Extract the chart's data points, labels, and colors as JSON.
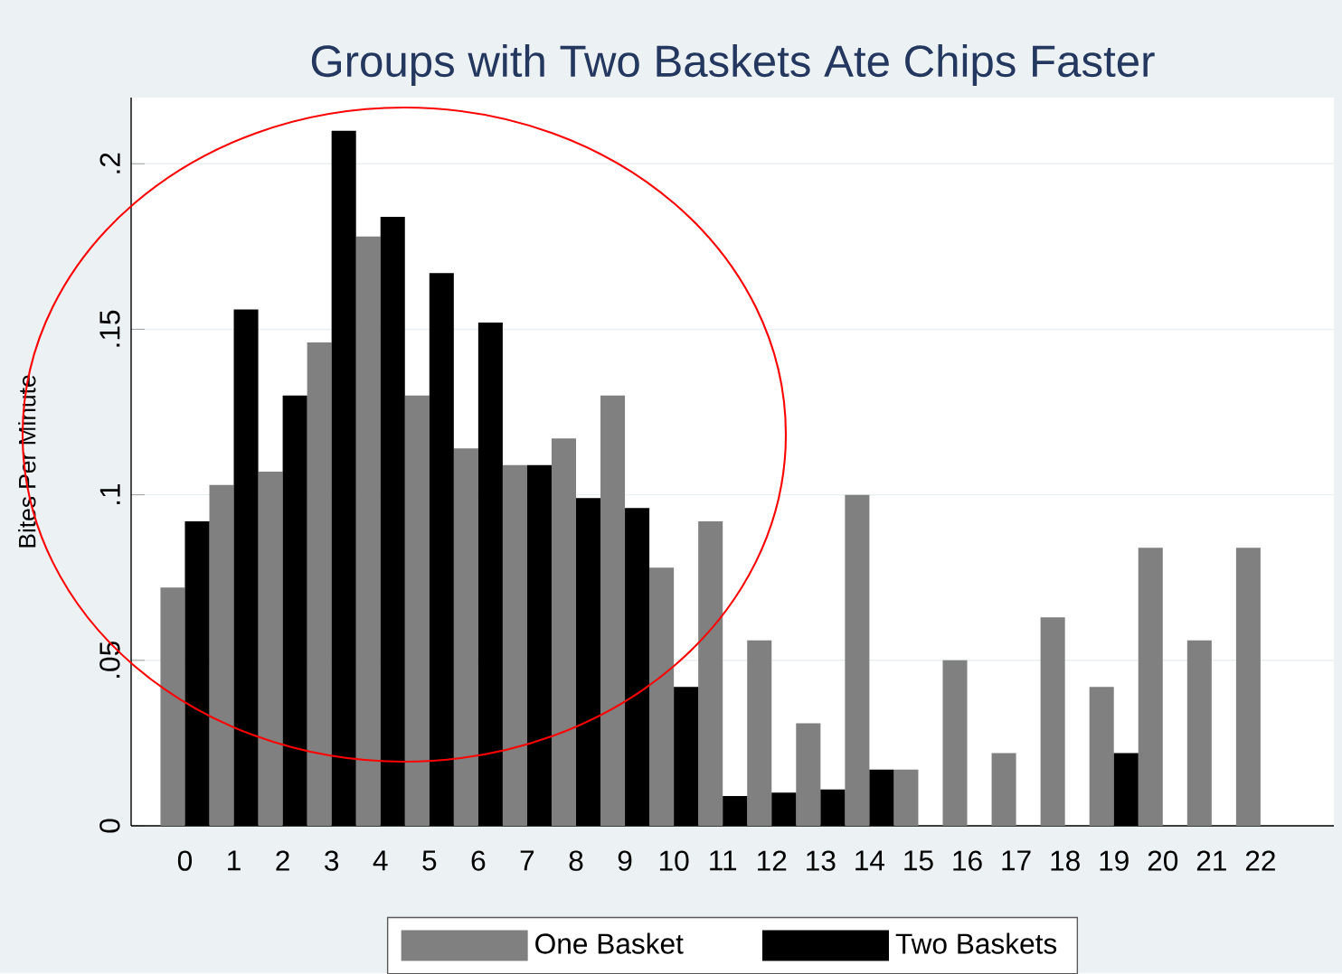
{
  "chart_data": {
    "type": "bar",
    "title": "Groups with Two Baskets Ate Chips Faster",
    "ylabel": "Bites Per Minute",
    "categories": [
      "0",
      "1",
      "2",
      "3",
      "4",
      "5",
      "6",
      "7",
      "8",
      "9",
      "10",
      "11",
      "12",
      "13",
      "14",
      "15",
      "16",
      "17",
      "18",
      "19",
      "20",
      "21",
      "22"
    ],
    "series": [
      {
        "name": "One Basket",
        "color": "#808080",
        "values": [
          0.072,
          0.103,
          0.107,
          0.146,
          0.178,
          0.13,
          0.114,
          0.109,
          0.117,
          0.13,
          0.078,
          0.092,
          0.056,
          0.031,
          0.1,
          0.017,
          0.05,
          0.022,
          0.063,
          0.042,
          0.084,
          0.056,
          0.084
        ]
      },
      {
        "name": "Two Baskets",
        "color": "#000000",
        "values": [
          0.092,
          0.156,
          0.13,
          0.21,
          0.184,
          0.167,
          0.152,
          0.109,
          0.099,
          0.096,
          0.042,
          0.009,
          0.01,
          0.011,
          0.017,
          null,
          null,
          null,
          null,
          0.022,
          null,
          null,
          null
        ]
      }
    ],
    "ylim": [
      0,
      0.22
    ],
    "yticks": [
      0,
      {
        "value": 0.05,
        "label": ".05"
      },
      {
        "value": 0.1,
        "label": ".1"
      },
      {
        "value": 0.15,
        "label": ".15"
      },
      {
        "value": 0.2,
        "label": ".2"
      }
    ],
    "grid": "y",
    "legend": "bottom"
  }
}
